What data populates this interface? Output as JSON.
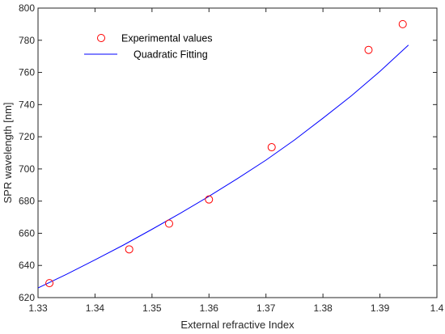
{
  "chart_data": {
    "type": "scatter",
    "title": "",
    "xlabel": "External refractive Index",
    "ylabel": "SPR wavelength [nm]",
    "xlim": [
      1.33,
      1.4
    ],
    "ylim": [
      620,
      800
    ],
    "xticks": [
      1.33,
      1.34,
      1.35,
      1.36,
      1.37,
      1.38,
      1.39,
      1.4
    ],
    "xtick_labels": [
      "1.33",
      "1.34",
      "1.35",
      "1.36",
      "1.37",
      "1.38",
      "1.39",
      "1.4"
    ],
    "yticks": [
      620,
      640,
      660,
      680,
      700,
      720,
      740,
      760,
      780,
      800
    ],
    "ytick_labels": [
      "620",
      "640",
      "660",
      "680",
      "700",
      "720",
      "740",
      "760",
      "780",
      "800"
    ],
    "grid": false,
    "legend_position": "top-left",
    "series": [
      {
        "name": "Experimental values",
        "kind": "markers",
        "marker": "open-circle",
        "color": "#ff0000",
        "x": [
          1.332,
          1.346,
          1.353,
          1.36,
          1.371,
          1.388,
          1.394
        ],
        "y": [
          629,
          650,
          666,
          681,
          713.5,
          774,
          790
        ]
      },
      {
        "name": "Quadratic Fitting",
        "kind": "line",
        "color": "#0000ff",
        "x": [
          1.33,
          1.335,
          1.34,
          1.345,
          1.35,
          1.355,
          1.36,
          1.365,
          1.37,
          1.375,
          1.38,
          1.385,
          1.39,
          1.395
        ],
        "y": [
          626,
          634.5,
          643.5,
          652.7,
          662.5,
          672.5,
          683,
          694,
          705.5,
          718,
          731.5,
          745.5,
          760.7,
          777
        ]
      }
    ]
  }
}
